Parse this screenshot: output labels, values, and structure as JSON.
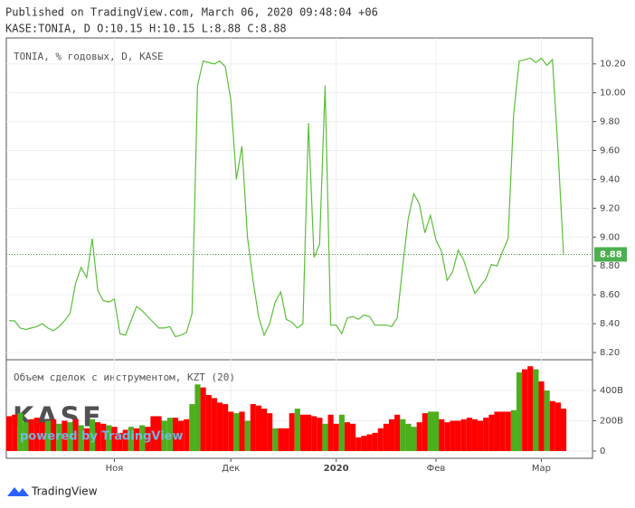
{
  "header": {
    "published": "Published on TradingView.com, March 06, 2020 09:48:04 +06",
    "ohlc": "KASE:TONIA, D O:10.15 H:10.15 L:8.88 C:8.88"
  },
  "watermark": {
    "logo": "KASE",
    "text": "powered by TradingView"
  },
  "footer": {
    "brand": "TradingView"
  },
  "chart_data": [
    {
      "type": "line",
      "title": "TONIA, % годовых, D, KASE",
      "color": "#5cbf3a",
      "grid": true,
      "categories": [
        null,
        null,
        null,
        null,
        null,
        null,
        null,
        null,
        null,
        null,
        null,
        null,
        null,
        null,
        null,
        null,
        null,
        null,
        null,
        "Ноя",
        null,
        null,
        null,
        null,
        null,
        null,
        null,
        null,
        null,
        null,
        null,
        null,
        null,
        null,
        null,
        null,
        null,
        null,
        null,
        null,
        "Дек",
        null,
        null,
        null,
        null,
        null,
        null,
        null,
        null,
        null,
        null,
        null,
        null,
        null,
        null,
        null,
        null,
        null,
        null,
        "2020",
        null,
        null,
        null,
        null,
        null,
        null,
        null,
        null,
        null,
        null,
        null,
        null,
        null,
        null,
        null,
        null,
        null,
        "Фев",
        null,
        null,
        null,
        null,
        null,
        null,
        null,
        null,
        null,
        null,
        null,
        null,
        null,
        null,
        null,
        null,
        null,
        null,
        "Мар",
        null,
        null,
        null,
        null
      ],
      "values": [
        8.42,
        8.42,
        8.37,
        8.36,
        8.37,
        8.38,
        8.4,
        8.37,
        8.35,
        8.38,
        8.42,
        8.47,
        8.68,
        8.79,
        8.72,
        8.99,
        8.63,
        8.56,
        8.55,
        8.57,
        8.33,
        8.32,
        8.42,
        8.52,
        8.49,
        8.45,
        8.41,
        8.37,
        8.37,
        8.38,
        8.31,
        8.32,
        8.34,
        8.47,
        10.05,
        10.22,
        10.21,
        10.2,
        10.22,
        10.18,
        9.95,
        9.4,
        9.63,
        9.0,
        8.7,
        8.45,
        8.32,
        8.4,
        8.55,
        8.62,
        8.43,
        8.41,
        8.37,
        8.4,
        9.79,
        8.86,
        8.95,
        10.05,
        8.39,
        8.39,
        8.33,
        8.44,
        8.45,
        8.43,
        8.46,
        8.45,
        8.39,
        8.39,
        8.39,
        8.38,
        8.44,
        8.8,
        9.13,
        9.3,
        9.23,
        9.03,
        9.15,
        8.98,
        8.9,
        8.7,
        8.76,
        8.91,
        8.84,
        8.72,
        8.61,
        8.66,
        8.71,
        8.81,
        8.8,
        8.9,
        8.99,
        9.85,
        10.22,
        10.23,
        10.24,
        10.21,
        10.24,
        10.19,
        10.23,
        9.6,
        8.88
      ],
      "ylim": [
        8.15,
        10.38
      ],
      "yticks": [
        {
          "value": 8.2,
          "label": "8.20"
        },
        {
          "value": 8.4,
          "label": "8.40"
        },
        {
          "value": 8.6,
          "label": "8.60"
        },
        {
          "value": 8.8,
          "label": "8.80"
        },
        {
          "value": 9.0,
          "label": "9.00"
        },
        {
          "value": 9.2,
          "label": "9.20"
        },
        {
          "value": 9.4,
          "label": "9.40"
        },
        {
          "value": 9.6,
          "label": "9.60"
        },
        {
          "value": 9.8,
          "label": "9.80"
        },
        {
          "value": 10.0,
          "label": "10.00"
        },
        {
          "value": 10.2,
          "label": "10.20"
        }
      ]
    },
    {
      "type": "bar",
      "title": "Объем сделок с инструментом, KZT (20)",
      "grid": true,
      "values": [
        230,
        240,
        250,
        190,
        210,
        220,
        190,
        200,
        210,
        180,
        200,
        190,
        210,
        170,
        150,
        210,
        190,
        180,
        170,
        160,
        120,
        140,
        160,
        150,
        170,
        160,
        230,
        230,
        200,
        220,
        220,
        200,
        210,
        310,
        440,
        420,
        370,
        350,
        320,
        310,
        260,
        250,
        260,
        200,
        310,
        300,
        280,
        250,
        150,
        150,
        150,
        250,
        280,
        240,
        240,
        230,
        220,
        180,
        240,
        180,
        240,
        190,
        180,
        90,
        100,
        110,
        120,
        150,
        180,
        210,
        240,
        210,
        180,
        160,
        190,
        250,
        260,
        260,
        210,
        190,
        200,
        200,
        210,
        220,
        210,
        200,
        220,
        240,
        260,
        260,
        260,
        270,
        520,
        540,
        560,
        540,
        460,
        400,
        330,
        320,
        280
      ],
      "colors": [
        "#ff0000",
        "#ff0000",
        "#4caf1c",
        "#4caf1c",
        "#ff0000",
        "#ff0000",
        "#ff0000",
        "#4caf1c",
        "#ff0000",
        "#4caf1c",
        "#ff0000",
        "#4caf1c",
        "#ff0000",
        "#4caf1c",
        "#ff0000",
        "#4caf1c",
        "#ff0000",
        "#ff0000",
        "#4caf1c",
        "#ff0000",
        "#ff0000",
        "#ff0000",
        "#4caf1c",
        "#ff0000",
        "#4caf1c",
        "#ff0000",
        "#ff0000",
        "#ff0000",
        "#4caf1c",
        "#4caf1c",
        "#ff0000",
        "#ff0000",
        "#ff0000",
        "#4caf1c",
        "#4caf1c",
        "#ff0000",
        "#ff0000",
        "#ff0000",
        "#ff0000",
        "#ff0000",
        "#ff0000",
        "#4caf1c",
        "#ff0000",
        "#4caf1c",
        "#ff0000",
        "#ff0000",
        "#ff0000",
        "#ff0000",
        "#4caf1c",
        "#ff0000",
        "#ff0000",
        "#ff0000",
        "#4caf1c",
        "#ff0000",
        "#ff0000",
        "#ff0000",
        "#ff0000",
        "#4caf1c",
        "#ff0000",
        "#ff0000",
        "#4caf1c",
        "#ff0000",
        "#ff0000",
        "#ff0000",
        "#ff0000",
        "#ff0000",
        "#ff0000",
        "#ff0000",
        "#ff0000",
        "#ff0000",
        "#ff0000",
        "#4caf1c",
        "#4caf1c",
        "#4caf1c",
        "#ff0000",
        "#ff0000",
        "#4caf1c",
        "#4caf1c",
        "#ff0000",
        "#ff0000",
        "#ff0000",
        "#ff0000",
        "#ff0000",
        "#ff0000",
        "#ff0000",
        "#ff0000",
        "#ff0000",
        "#ff0000",
        "#ff0000",
        "#ff0000",
        "#ff0000",
        "#4caf1c",
        "#4caf1c",
        "#ff0000",
        "#ff0000",
        "#4caf1c",
        "#ff0000",
        "#4caf1c",
        "#ff0000",
        "#ff0000",
        "#ff0000"
      ],
      "ylim": [
        -48,
        603
      ],
      "yticks": [
        0,
        {
          "value": 200,
          "label": "200B"
        },
        {
          "value": 400,
          "label": "400B"
        }
      ]
    }
  ]
}
